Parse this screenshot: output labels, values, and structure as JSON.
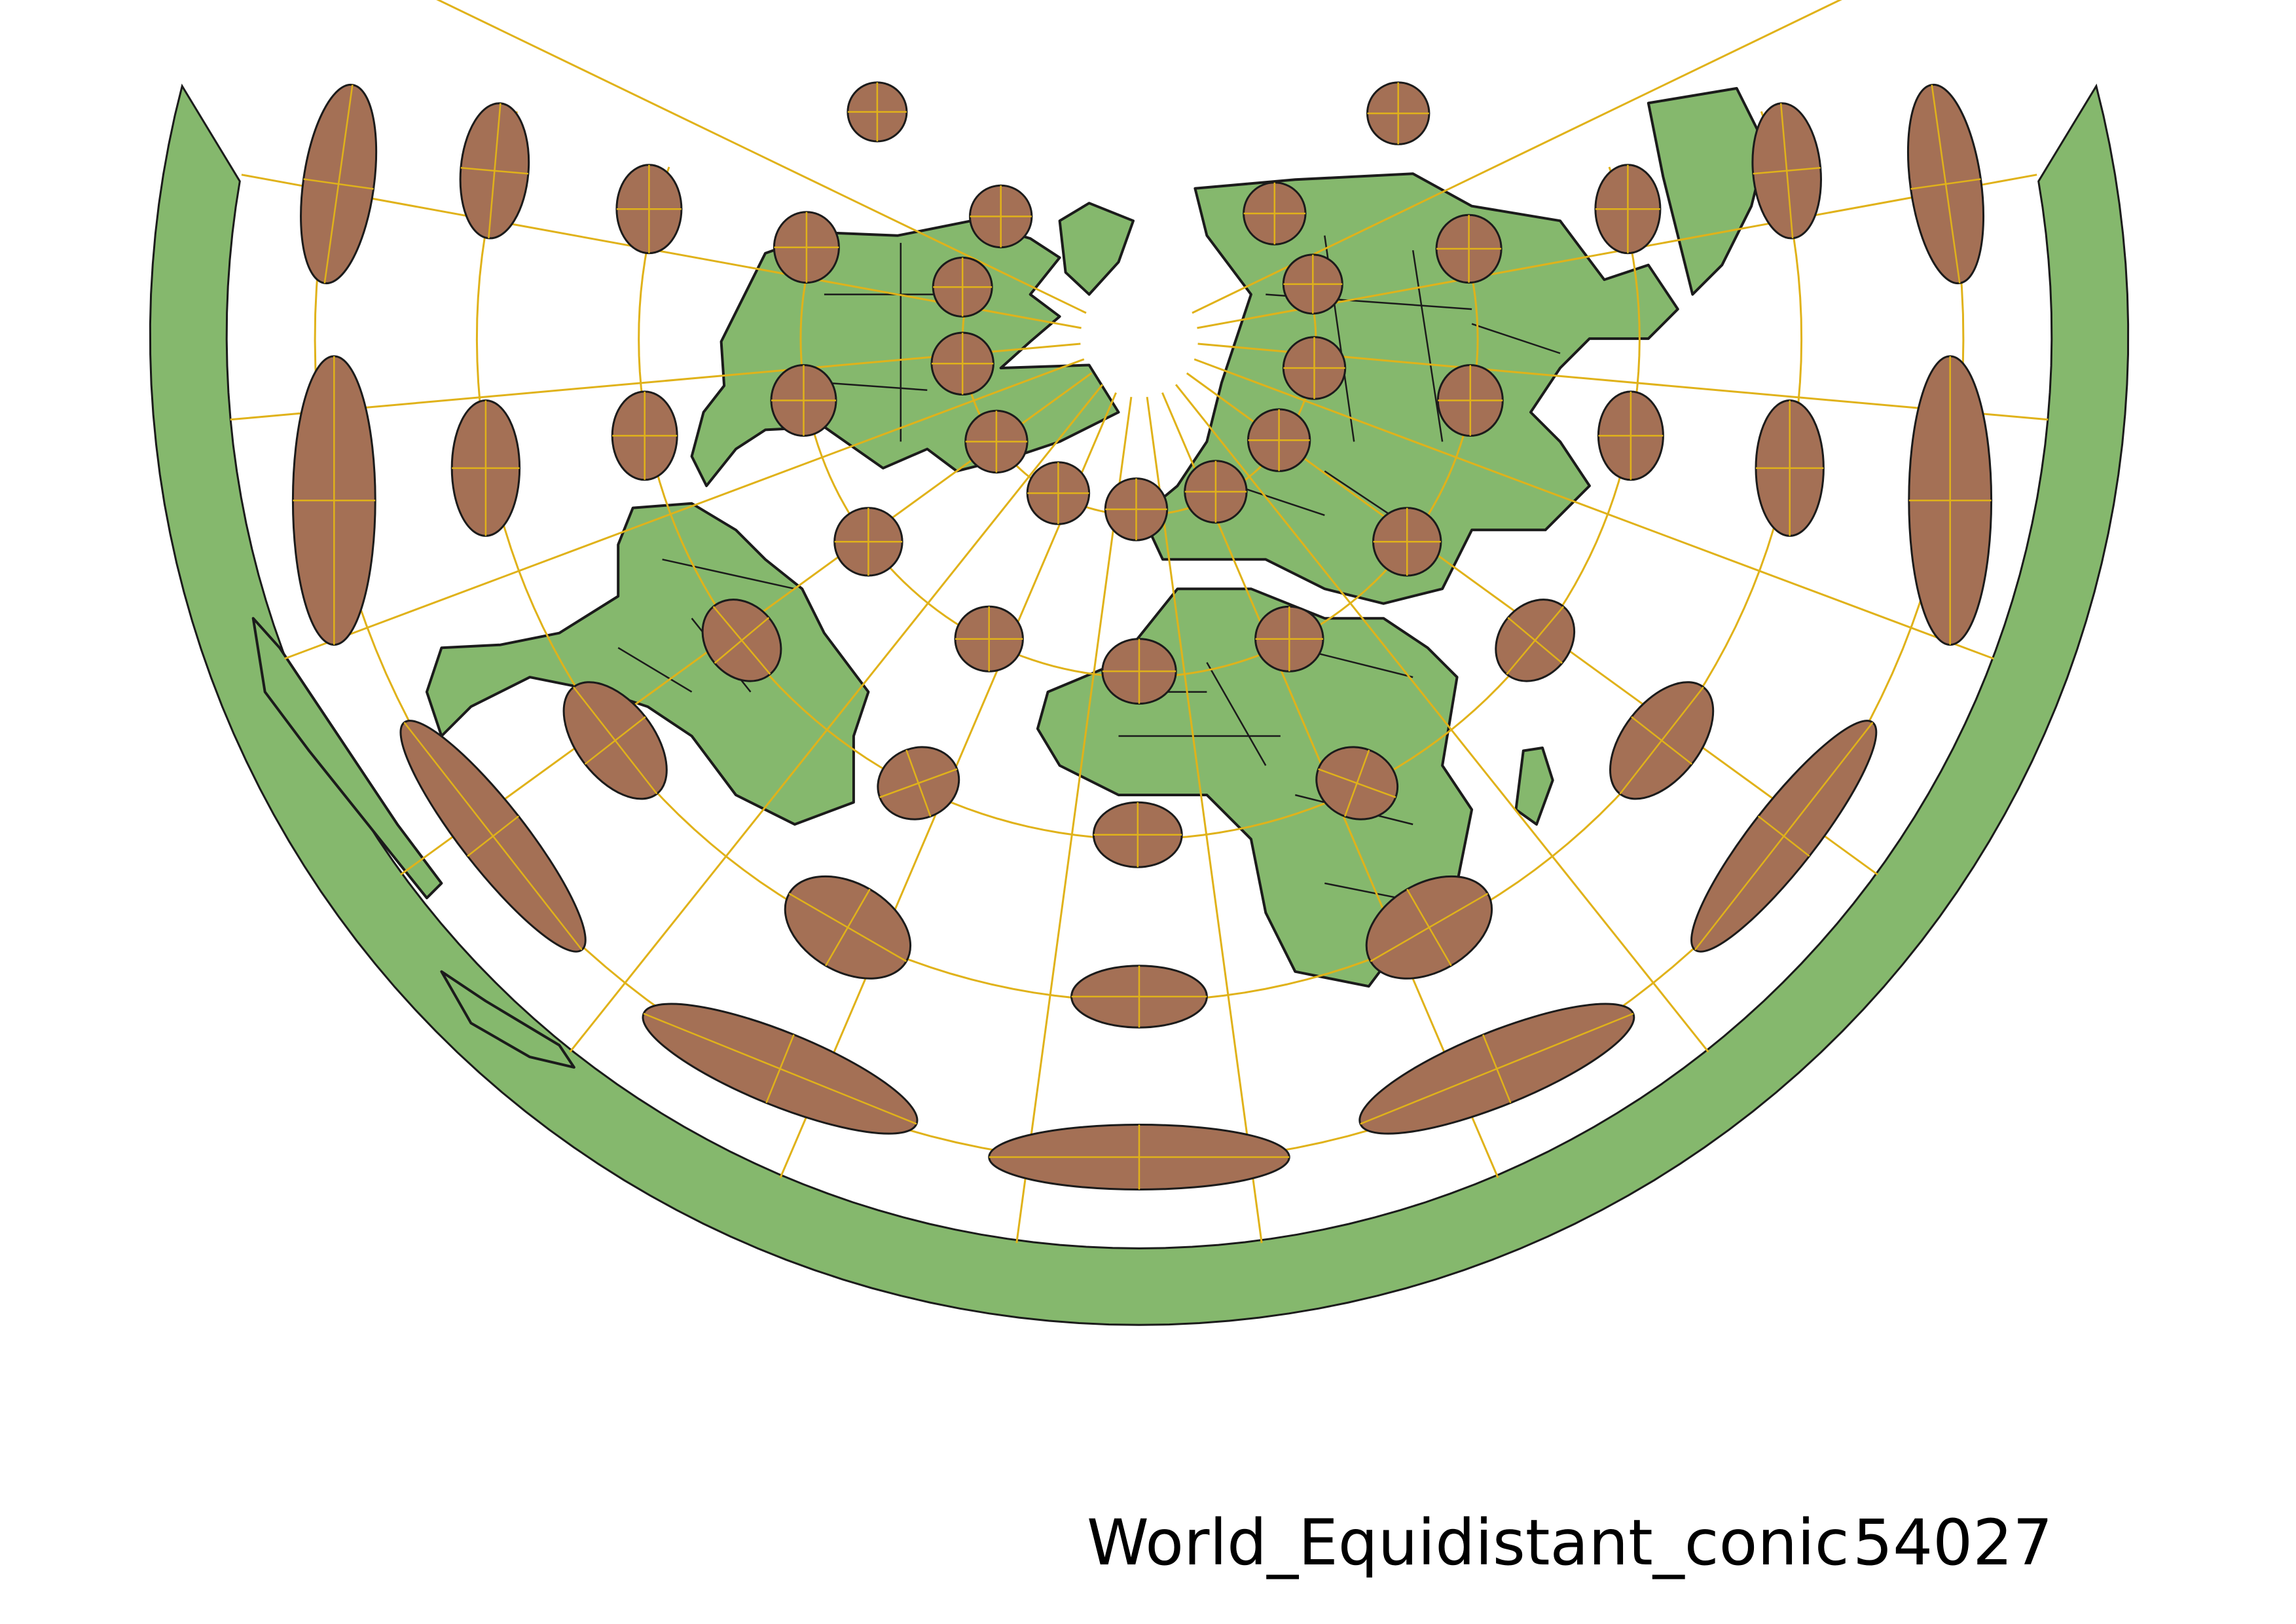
{
  "map": {
    "projection_name": "World_Equidistant_conic",
    "projection_code": "54027",
    "colors": {
      "background": "#ffffff",
      "land_fill": "#85b86d",
      "land_stroke": "#1b1b1b",
      "ellipse_fill": "#a47055",
      "ellipse_stroke": "#1b1b1b",
      "graticule": "#e0b21a"
    },
    "layers": [
      {
        "name": "land masses and country borders",
        "icon": "land-polygon"
      },
      {
        "name": "Tissot indicatrix ellipses",
        "icon": "ellipse"
      },
      {
        "name": "graticule (parallels and meridians)",
        "icon": "grid-lines"
      }
    ]
  }
}
